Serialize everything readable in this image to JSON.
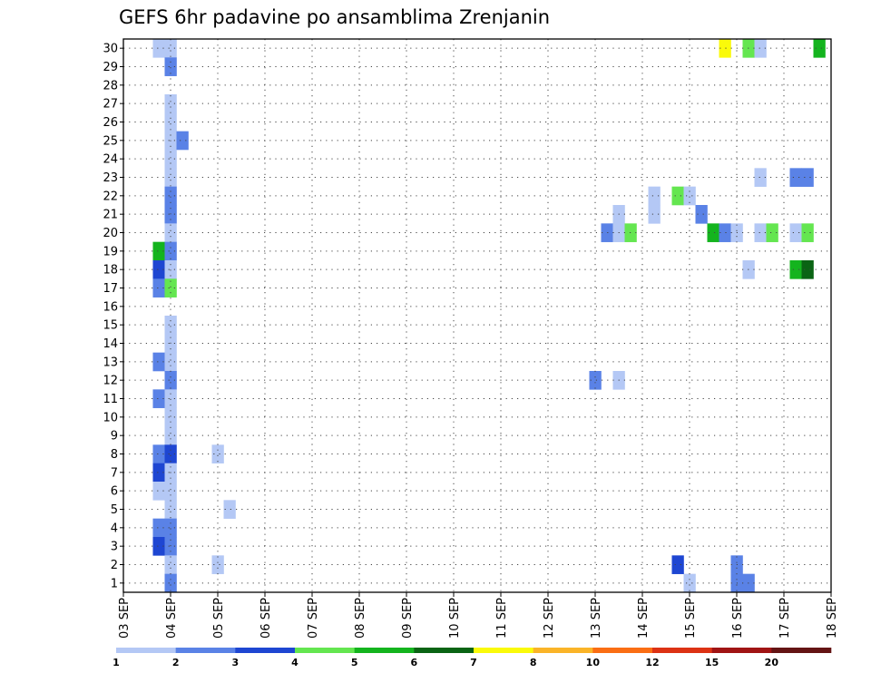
{
  "chart_data": {
    "type": "heatmap",
    "title": "GEFS 6hr padavine po ansamblima Zrenjanin",
    "x_ticks": [
      "03 SEP",
      "04 SEP",
      "05 SEP",
      "06 SEP",
      "07 SEP",
      "08 SEP",
      "09 SEP",
      "10 SEP",
      "11 SEP",
      "12 SEP",
      "13 SEP",
      "14 SEP",
      "15 SEP",
      "16 SEP",
      "17 SEP",
      "18 SEP"
    ],
    "y_ticks": [
      "1",
      "2",
      "3",
      "4",
      "5",
      "6",
      "7",
      "8",
      "9",
      "10",
      "11",
      "12",
      "13",
      "14",
      "15",
      "16",
      "17",
      "18",
      "19",
      "20",
      "21",
      "22",
      "23",
      "24",
      "25",
      "26",
      "27",
      "28",
      "29",
      "30"
    ],
    "xlim": [
      0,
      60
    ],
    "ylim": [
      0.5,
      30.5
    ],
    "grid": true,
    "legend": {
      "position": "bottom",
      "labels": [
        "1",
        "2",
        "3",
        "4",
        "5",
        "6",
        "7",
        "8",
        "10",
        "12",
        "15",
        "20"
      ],
      "colors": [
        "#b4c8f5",
        "#5a82e6",
        "#1e46d2",
        "#64e650",
        "#14b41e",
        "#0a6414",
        "#fafa0a",
        "#fab428",
        "#fa6e14",
        "#dc3214",
        "#a01414",
        "#641414"
      ]
    },
    "cell_levels": [
      {
        "t": 3,
        "m": 30,
        "lvl": 0
      },
      {
        "t": 4,
        "m": 30,
        "lvl": 0
      },
      {
        "t": 4,
        "m": 29,
        "lvl": 1
      },
      {
        "t": 4,
        "m": 27,
        "lvl": 0
      },
      {
        "t": 4,
        "m": 26,
        "lvl": 0
      },
      {
        "t": 4,
        "m": 25,
        "lvl": 0
      },
      {
        "t": 5,
        "m": 25,
        "lvl": 1
      },
      {
        "t": 4,
        "m": 24,
        "lvl": 0
      },
      {
        "t": 4,
        "m": 23,
        "lvl": 0
      },
      {
        "t": 4,
        "m": 22,
        "lvl": 1
      },
      {
        "t": 4,
        "m": 21,
        "lvl": 1
      },
      {
        "t": 4,
        "m": 20,
        "lvl": 0
      },
      {
        "t": 3,
        "m": 19,
        "lvl": 4
      },
      {
        "t": 4,
        "m": 19,
        "lvl": 1
      },
      {
        "t": 3,
        "m": 18,
        "lvl": 2
      },
      {
        "t": 4,
        "m": 18,
        "lvl": 0
      },
      {
        "t": 3,
        "m": 17,
        "lvl": 1
      },
      {
        "t": 4,
        "m": 17,
        "lvl": 3
      },
      {
        "t": 4,
        "m": 15,
        "lvl": 0
      },
      {
        "t": 4,
        "m": 14,
        "lvl": 0
      },
      {
        "t": 3,
        "m": 13,
        "lvl": 1
      },
      {
        "t": 4,
        "m": 13,
        "lvl": 0
      },
      {
        "t": 4,
        "m": 12,
        "lvl": 1
      },
      {
        "t": 3,
        "m": 11,
        "lvl": 1
      },
      {
        "t": 4,
        "m": 11,
        "lvl": 0
      },
      {
        "t": 4,
        "m": 10,
        "lvl": 0
      },
      {
        "t": 4,
        "m": 9,
        "lvl": 0
      },
      {
        "t": 3,
        "m": 8,
        "lvl": 1
      },
      {
        "t": 4,
        "m": 8,
        "lvl": 2
      },
      {
        "t": 3,
        "m": 7,
        "lvl": 2
      },
      {
        "t": 4,
        "m": 7,
        "lvl": 0
      },
      {
        "t": 3,
        "m": 6,
        "lvl": 0
      },
      {
        "t": 4,
        "m": 6,
        "lvl": 0
      },
      {
        "t": 4,
        "m": 5,
        "lvl": 0
      },
      {
        "t": 3,
        "m": 4,
        "lvl": 1
      },
      {
        "t": 4,
        "m": 4,
        "lvl": 1
      },
      {
        "t": 3,
        "m": 3,
        "lvl": 2
      },
      {
        "t": 4,
        "m": 3,
        "lvl": 1
      },
      {
        "t": 4,
        "m": 2,
        "lvl": 0
      },
      {
        "t": 4,
        "m": 1,
        "lvl": 1
      },
      {
        "t": 8,
        "m": 8,
        "lvl": 0
      },
      {
        "t": 8,
        "m": 2,
        "lvl": 0
      },
      {
        "t": 9,
        "m": 5,
        "lvl": 0
      },
      {
        "t": 40,
        "m": 12,
        "lvl": 1
      },
      {
        "t": 42,
        "m": 12,
        "lvl": 0
      },
      {
        "t": 42,
        "m": 21,
        "lvl": 0
      },
      {
        "t": 41,
        "m": 20,
        "lvl": 1
      },
      {
        "t": 42,
        "m": 20,
        "lvl": 0
      },
      {
        "t": 43,
        "m": 20,
        "lvl": 3
      },
      {
        "t": 45,
        "m": 22,
        "lvl": 0
      },
      {
        "t": 45,
        "m": 21,
        "lvl": 0
      },
      {
        "t": 47,
        "m": 22,
        "lvl": 3
      },
      {
        "t": 48,
        "m": 22,
        "lvl": 0
      },
      {
        "t": 48,
        "m": 1,
        "lvl": 0
      },
      {
        "t": 49,
        "m": 21,
        "lvl": 1
      },
      {
        "t": 50,
        "m": 20,
        "lvl": 4
      },
      {
        "t": 51,
        "m": 20,
        "lvl": 1
      },
      {
        "t": 52,
        "m": 20,
        "lvl": 0
      },
      {
        "t": 54,
        "m": 20,
        "lvl": 0
      },
      {
        "t": 55,
        "m": 20,
        "lvl": 3
      },
      {
        "t": 57,
        "m": 20,
        "lvl": 0
      },
      {
        "t": 58,
        "m": 20,
        "lvl": 3
      },
      {
        "t": 54,
        "m": 23,
        "lvl": 0
      },
      {
        "t": 57,
        "m": 23,
        "lvl": 1
      },
      {
        "t": 58,
        "m": 23,
        "lvl": 1
      },
      {
        "t": 53,
        "m": 18,
        "lvl": 0
      },
      {
        "t": 57,
        "m": 18,
        "lvl": 4
      },
      {
        "t": 58,
        "m": 18,
        "lvl": 5
      },
      {
        "t": 47,
        "m": 2,
        "lvl": 2
      },
      {
        "t": 52,
        "m": 2,
        "lvl": 1
      },
      {
        "t": 52,
        "m": 1,
        "lvl": 1
      },
      {
        "t": 53,
        "m": 1,
        "lvl": 1
      },
      {
        "t": 51,
        "m": 30,
        "lvl": 6
      },
      {
        "t": 53,
        "m": 30,
        "lvl": 3
      },
      {
        "t": 54,
        "m": 30,
        "lvl": 0
      },
      {
        "t": 59,
        "m": 30,
        "lvl": 4
      }
    ]
  }
}
